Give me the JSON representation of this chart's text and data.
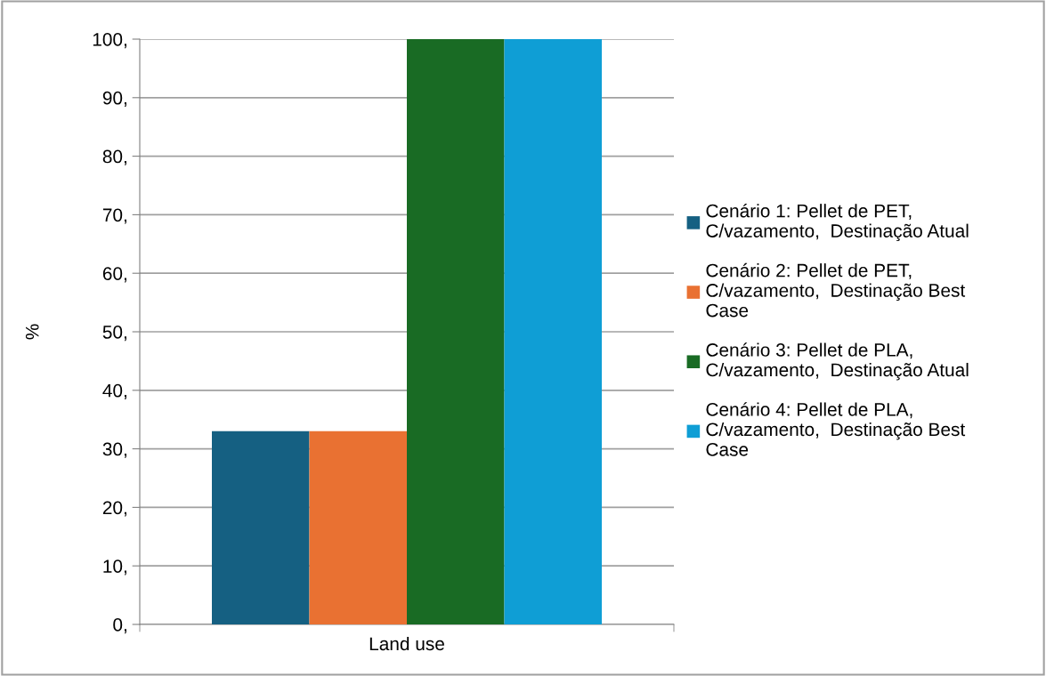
{
  "chart_data": {
    "type": "bar",
    "ylabel": "%",
    "categories": [
      "Land use"
    ],
    "series": [
      {
        "name": "Cenário 1: Pellet de PET,\nC/vazamento,  Destinação Atual",
        "color": "#156082",
        "values": [
          33
        ]
      },
      {
        "name": "Cenário 2: Pellet de PET,\nC/vazamento,  Destinação Best\nCase",
        "color": "#e97132",
        "values": [
          33
        ]
      },
      {
        "name": "Cenário 3: Pellet de PLA,\nC/vazamento,  Destinação Atual",
        "color": "#196b24",
        "values": [
          100
        ]
      },
      {
        "name": "Cenário 4: Pellet de PLA,\nC/vazamento,  Destinação Best\nCase",
        "color": "#0f9ed5",
        "values": [
          100
        ]
      }
    ],
    "ylim": [
      0,
      100
    ],
    "yticks": [
      {
        "value": 0,
        "label": "0,"
      },
      {
        "value": 10,
        "label": "10,"
      },
      {
        "value": 20,
        "label": "20,"
      },
      {
        "value": 30,
        "label": "30,"
      },
      {
        "value": 40,
        "label": "40,"
      },
      {
        "value": 50,
        "label": "50,"
      },
      {
        "value": 60,
        "label": "60,"
      },
      {
        "value": 70,
        "label": "70,"
      },
      {
        "value": 80,
        "label": "80,"
      },
      {
        "value": 90,
        "label": "90,"
      },
      {
        "value": 100,
        "label": "100,"
      }
    ],
    "grid": "y",
    "legend": "right"
  }
}
